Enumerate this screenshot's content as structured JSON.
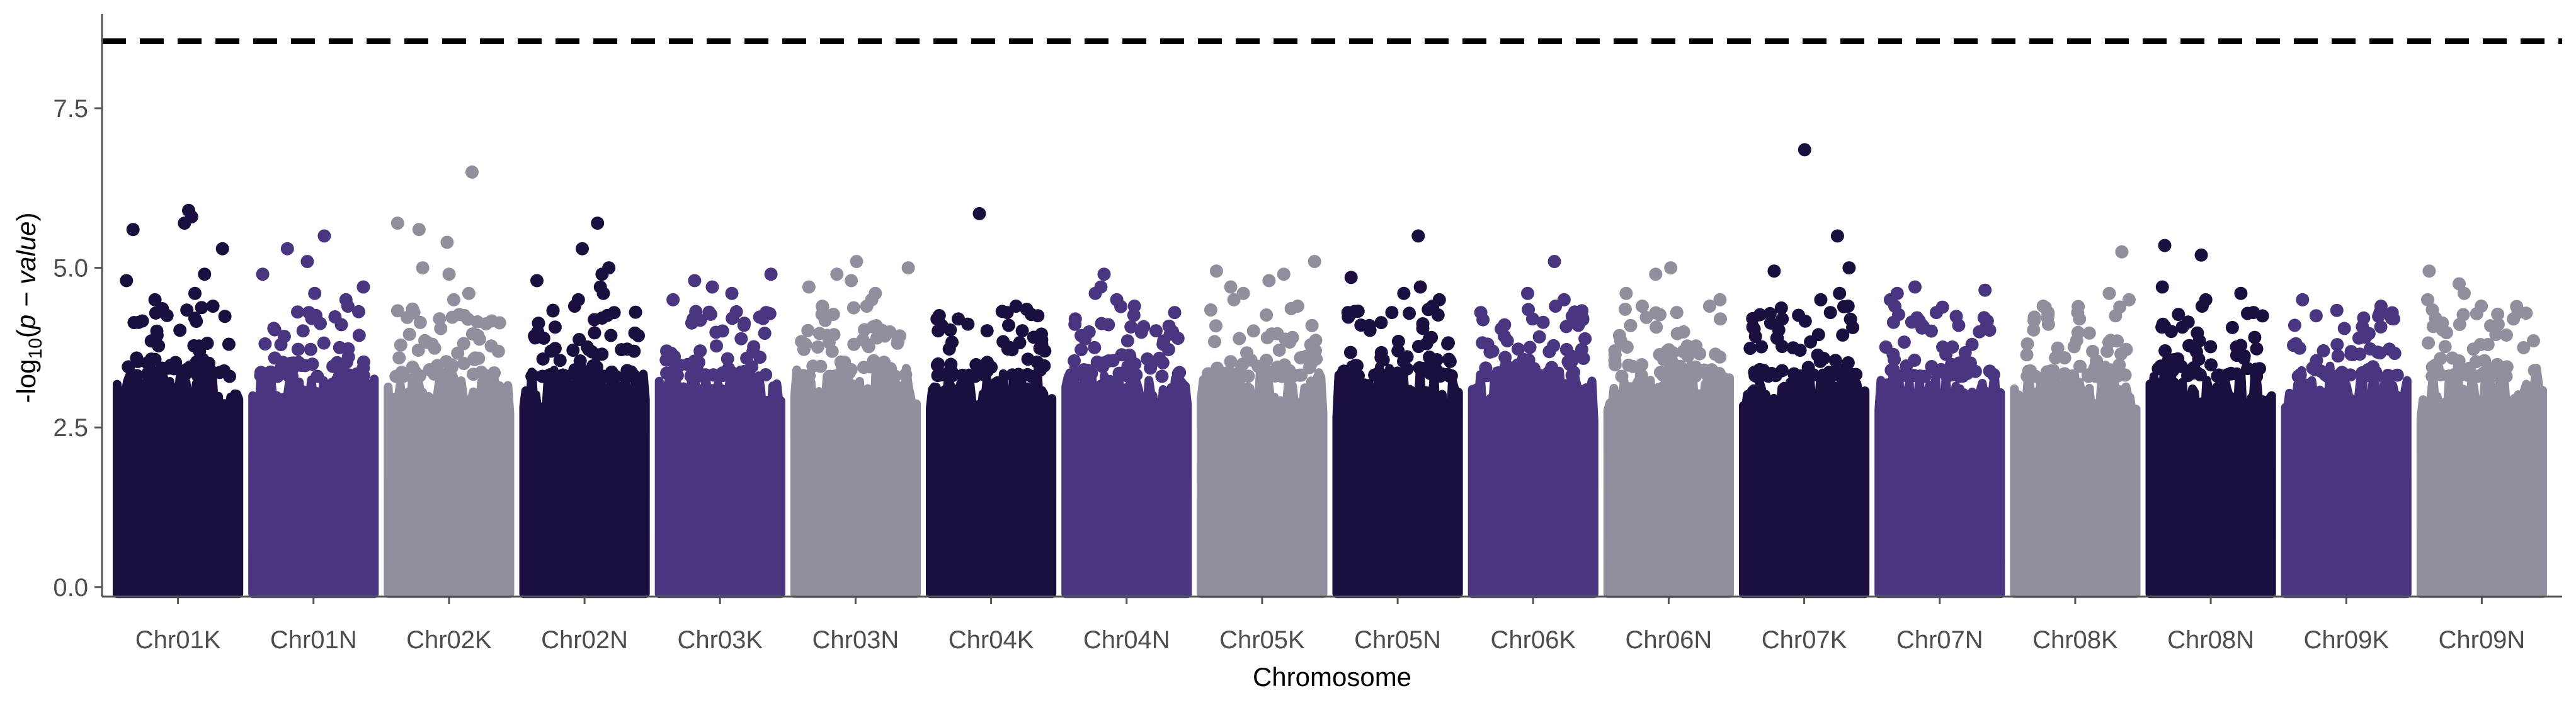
{
  "chart_data": {
    "type": "scatter",
    "subtype": "manhattan",
    "title": "",
    "xlabel": "Chromosome",
    "ylabel_prefix": "-log",
    "ylabel_subscript": "10",
    "ylabel_open": "(",
    "ylabel_italic": "p − value",
    "ylabel_close": ")",
    "ylim": [
      -0.15,
      8.9
    ],
    "y_ticks": [
      {
        "value": 0,
        "label": "0.0"
      },
      {
        "value": 2.5,
        "label": "2.5"
      },
      {
        "value": 5,
        "label": "5.0"
      },
      {
        "value": 7.5,
        "label": "7.5"
      }
    ],
    "threshold": 8.55,
    "threshold_style": "dashed",
    "grid": false,
    "legend": "none",
    "colors": [
      "#1b0f40",
      "#4a3580",
      "#918e9e"
    ],
    "categories": [
      "Chr01K",
      "Chr01N",
      "Chr02K",
      "Chr02N",
      "Chr03K",
      "Chr03N",
      "Chr04K",
      "Chr04N",
      "Chr05K",
      "Chr05N",
      "Chr06K",
      "Chr06N",
      "Chr07K",
      "Chr07N",
      "Chr08K",
      "Chr08N",
      "Chr09K",
      "Chr09N"
    ],
    "series": [
      {
        "category": "Chr01K",
        "color": "#1b0f40",
        "top_points": [
          5.9,
          5.8,
          5.7,
          5.6,
          5.3,
          4.9,
          4.8,
          4.6,
          4.5,
          4.4
        ]
      },
      {
        "category": "Chr01N",
        "color": "#4a3580",
        "top_points": [
          5.5,
          5.3,
          5.1,
          4.9,
          4.7,
          4.6,
          4.5,
          4.4,
          4.3
        ]
      },
      {
        "category": "Chr02K",
        "color": "#918e9e",
        "top_points": [
          6.5,
          5.7,
          5.6,
          5.4,
          5.0,
          4.9,
          4.6,
          4.5,
          4.3
        ]
      },
      {
        "category": "Chr02N",
        "color": "#1b0f40",
        "top_points": [
          5.7,
          5.3,
          5.0,
          4.9,
          4.8,
          4.7,
          4.6,
          4.5,
          4.4
        ]
      },
      {
        "category": "Chr03K",
        "color": "#4a3580",
        "top_points": [
          4.9,
          4.8,
          4.7,
          4.6,
          4.5,
          4.3,
          4.2,
          4.1
        ]
      },
      {
        "category": "Chr03N",
        "color": "#918e9e",
        "top_points": [
          5.1,
          5.0,
          4.9,
          4.8,
          4.7,
          4.6,
          4.5,
          4.4
        ]
      },
      {
        "category": "Chr04K",
        "color": "#1b0f40",
        "top_points": [
          5.85,
          4.4,
          4.35,
          4.3,
          4.25,
          4.2,
          4.1
        ]
      },
      {
        "category": "Chr04N",
        "color": "#4a3580",
        "top_points": [
          4.9,
          4.7,
          4.6,
          4.5,
          4.4,
          4.3,
          4.2
        ]
      },
      {
        "category": "Chr05K",
        "color": "#918e9e",
        "top_points": [
          5.1,
          4.95,
          4.9,
          4.8,
          4.7,
          4.6,
          4.5,
          4.4
        ]
      },
      {
        "category": "Chr05N",
        "color": "#1b0f40",
        "top_points": [
          5.5,
          4.85,
          4.7,
          4.6,
          4.5,
          4.4,
          4.3
        ]
      },
      {
        "category": "Chr06K",
        "color": "#4a3580",
        "top_points": [
          5.1,
          4.6,
          4.5,
          4.4,
          4.3,
          4.2,
          4.1
        ]
      },
      {
        "category": "Chr06N",
        "color": "#918e9e",
        "top_points": [
          5.0,
          4.9,
          4.6,
          4.5,
          4.4,
          4.3,
          4.2
        ]
      },
      {
        "category": "Chr07K",
        "color": "#1b0f40",
        "top_points": [
          6.85,
          5.5,
          5.0,
          4.95,
          4.6,
          4.5,
          4.4,
          4.3
        ]
      },
      {
        "category": "Chr07N",
        "color": "#4a3580",
        "top_points": [
          4.7,
          4.65,
          4.6,
          4.5,
          4.4,
          4.3
        ]
      },
      {
        "category": "Chr08K",
        "color": "#918e9e",
        "top_points": [
          5.25,
          4.6,
          4.5,
          4.4,
          4.3,
          4.2
        ]
      },
      {
        "category": "Chr08N",
        "color": "#1b0f40",
        "top_points": [
          5.35,
          5.2,
          4.7,
          4.6,
          4.5,
          4.4,
          4.3
        ]
      },
      {
        "category": "Chr09K",
        "color": "#4a3580",
        "top_points": [
          4.5,
          4.4,
          4.3,
          4.25,
          4.2,
          4.1
        ]
      },
      {
        "category": "Chr09N",
        "color": "#918e9e",
        "top_points": [
          4.95,
          4.75,
          4.6,
          4.5,
          4.4,
          4.3,
          4.2
        ]
      }
    ],
    "bulk_envelope": {
      "min": 0,
      "typical_max": 3.5
    }
  }
}
